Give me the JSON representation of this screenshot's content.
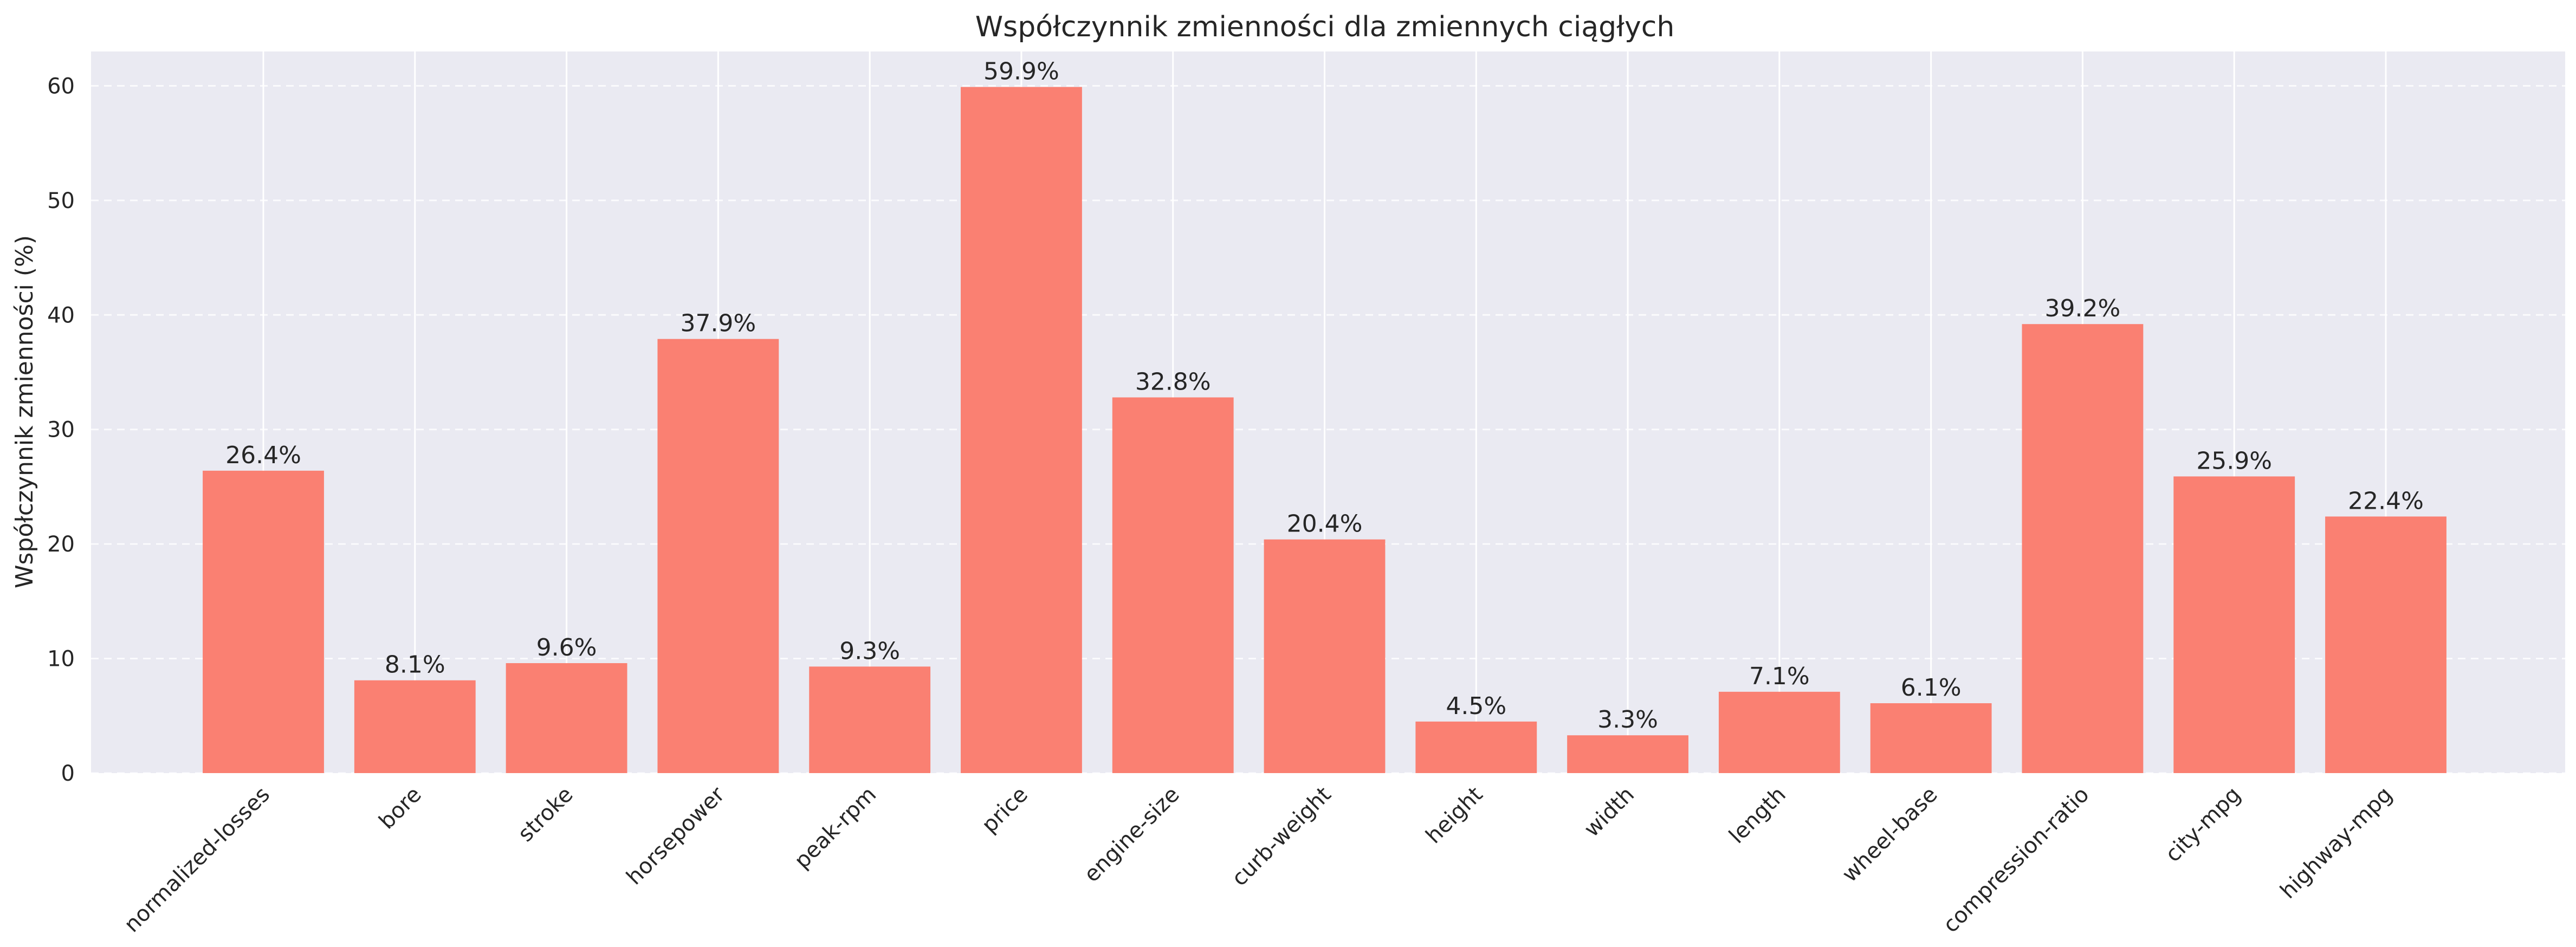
{
  "chart_data": {
    "type": "bar",
    "title": "Współczynnik zmienności dla zmiennych ciągłych",
    "xlabel": "",
    "ylabel": "Współczynnik zmienności (%)",
    "categories": [
      "normalized-losses",
      "bore",
      "stroke",
      "horsepower",
      "peak-rpm",
      "price",
      "engine-size",
      "curb-weight",
      "height",
      "width",
      "length",
      "wheel-base",
      "compression-ratio",
      "city-mpg",
      "highway-mpg"
    ],
    "values": [
      26.4,
      8.1,
      9.6,
      37.9,
      9.3,
      59.9,
      32.8,
      20.4,
      4.5,
      3.3,
      7.1,
      6.1,
      39.2,
      25.9,
      22.4
    ],
    "value_labels": [
      "26.4%",
      "8.1%",
      "9.6%",
      "37.9%",
      "9.3%",
      "59.9%",
      "32.8%",
      "20.4%",
      "4.5%",
      "3.3%",
      "7.1%",
      "6.1%",
      "39.2%",
      "25.9%",
      "22.4%"
    ],
    "ylim": [
      0,
      63
    ],
    "yticks": [
      0,
      10,
      20,
      30,
      40,
      50,
      60
    ],
    "grid": true,
    "colors": {
      "bar": "#fa8072",
      "plot_background": "#eaeaf2",
      "grid": "#ffffff",
      "text": "#262626"
    }
  }
}
